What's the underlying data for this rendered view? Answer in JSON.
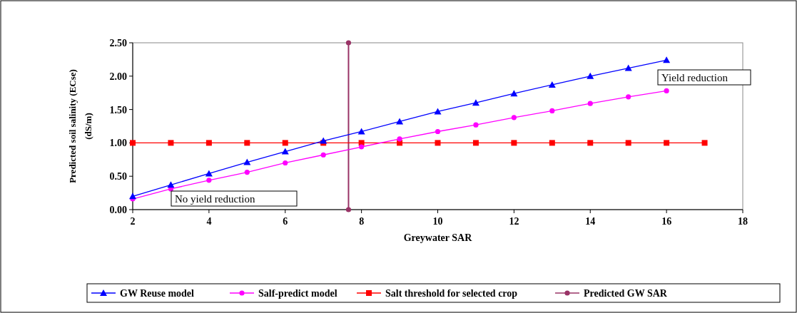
{
  "chart_data": {
    "type": "line",
    "xlabel": "Greywater SAR",
    "ylabel": "Predicted soil salinity (ECse)\n(dS/m)",
    "xlim": [
      2,
      18
    ],
    "xticks": [
      2,
      4,
      6,
      8,
      10,
      12,
      14,
      16,
      18
    ],
    "ylim": [
      0,
      2.5
    ],
    "yticks": [
      {
        "value": 0,
        "label": "0.00"
      },
      {
        "value": 0.5,
        "label": "0.50"
      },
      {
        "value": 1,
        "label": "1.00"
      },
      {
        "value": 1.5,
        "label": "1.50"
      },
      {
        "value": 2,
        "label": "2.00"
      },
      {
        "value": 2.5,
        "label": "2.50"
      }
    ],
    "grid": false,
    "legend": "bottom",
    "line_style": "solid",
    "annotations": [
      "Yield reduction",
      "No yield reduction"
    ],
    "series": [
      {
        "name": "GW Reuse model",
        "color": "#0000ff",
        "marker": "triangle",
        "x": [
          2,
          3,
          4,
          5,
          6,
          7,
          8,
          9,
          10,
          11,
          12,
          13,
          14,
          15,
          16
        ],
        "values": [
          0.2,
          0.37,
          0.54,
          0.71,
          0.87,
          1.03,
          1.17,
          1.32,
          1.47,
          1.6,
          1.74,
          1.87,
          2.0,
          2.12,
          2.24
        ]
      },
      {
        "name": "Salf-predict model",
        "color": "#ff00ff",
        "marker": "circle",
        "x": [
          2,
          3,
          4,
          5,
          6,
          7,
          8,
          9,
          10,
          11,
          12,
          13,
          14,
          15,
          16
        ],
        "values": [
          0.16,
          0.31,
          0.44,
          0.56,
          0.7,
          0.82,
          0.94,
          1.06,
          1.17,
          1.27,
          1.38,
          1.48,
          1.59,
          1.69,
          1.78
        ]
      },
      {
        "name": "Salt threshold for selected crop",
        "color": "#ff0000",
        "marker": "square",
        "x": [
          2,
          3,
          4,
          5,
          6,
          7,
          8,
          9,
          10,
          11,
          12,
          13,
          14,
          15,
          16,
          17
        ],
        "values": [
          1,
          1,
          1,
          1,
          1,
          1,
          1,
          1,
          1,
          1,
          1,
          1,
          1,
          1,
          1,
          1
        ]
      },
      {
        "name": "Predicted GW SAR",
        "color": "#993366",
        "marker": "circle",
        "x": [
          7.66,
          7.66
        ],
        "values": [
          0,
          2.5
        ]
      }
    ]
  }
}
